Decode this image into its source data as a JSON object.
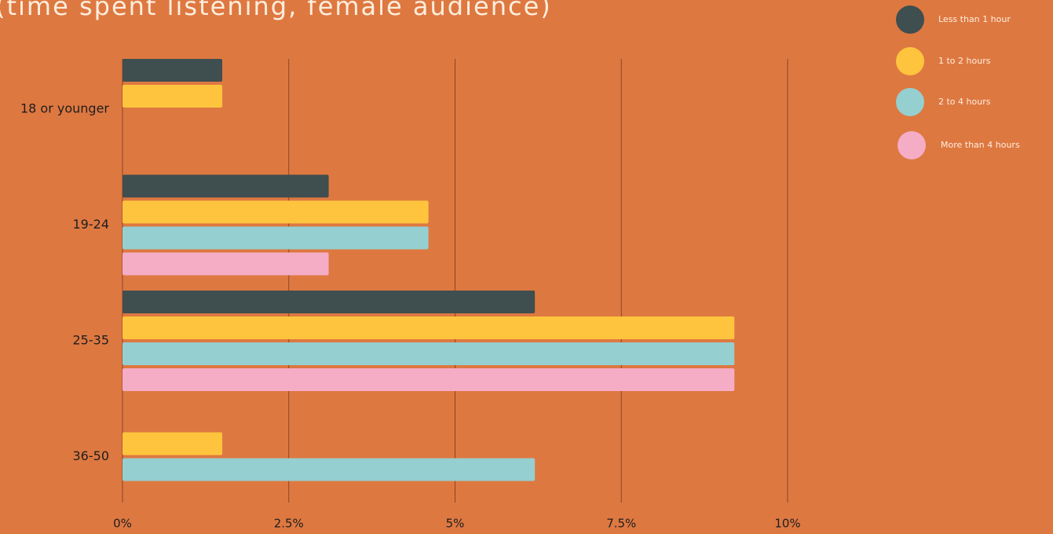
{
  "chart_data": {
    "type": "bar",
    "orientation": "horizontal",
    "title": "(time spent listening, female audience)",
    "categories": [
      "18 or younger",
      "19-24",
      "25-35",
      "36-50"
    ],
    "series": [
      {
        "name": "Less than 1 hour",
        "color": "#3f4e4f",
        "values": [
          1.5,
          3.1,
          6.2,
          null
        ]
      },
      {
        "name": "1 to 2 hours",
        "color": "#ffc43d",
        "values": [
          1.5,
          4.6,
          9.2,
          1.5
        ]
      },
      {
        "name": "2 to 4 hours",
        "color": "#95cfd0",
        "values": [
          null,
          4.6,
          9.2,
          6.2
        ]
      },
      {
        "name": "More than 4 hours",
        "color": "#f5adc6",
        "values": [
          null,
          3.1,
          9.2,
          null
        ]
      }
    ],
    "xlim": [
      0,
      10
    ],
    "xticks": [
      {
        "value": 0,
        "label": "0%"
      },
      {
        "value": 2.5,
        "label": "2.5%"
      },
      {
        "value": 5,
        "label": "5%"
      },
      {
        "value": 7.5,
        "label": "7.5%"
      },
      {
        "value": 10,
        "label": "10%"
      }
    ],
    "grid": true,
    "legend": "top-right"
  }
}
